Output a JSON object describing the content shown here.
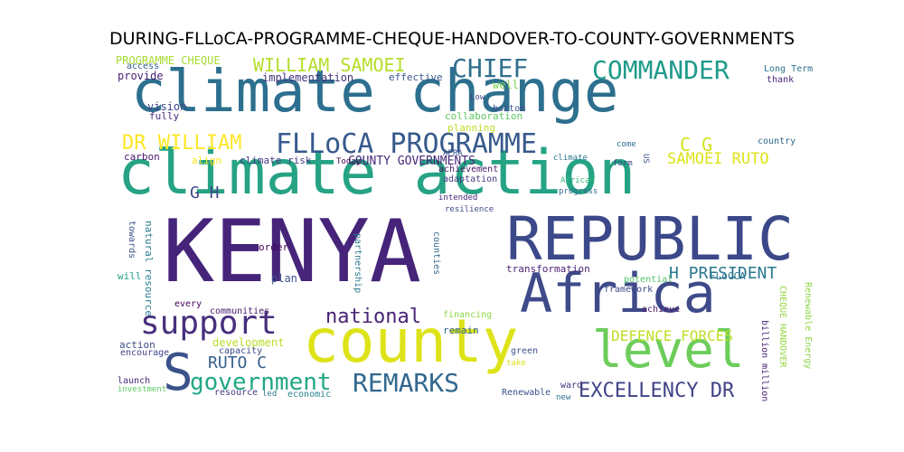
{
  "title": "DURING-FLLoCA-PROGRAMME-CHEQUE-HANDOVER-TO-COUNTY-GOVERNMENTS",
  "words": [
    {
      "text": "KENYA",
      "color": "#46247a"
    },
    {
      "text": "climate change",
      "color": "#2d6f8e"
    },
    {
      "text": "climate action",
      "color": "#25a384"
    },
    {
      "text": "REPUBLIC",
      "color": "#3b4889"
    },
    {
      "text": "Africa",
      "color": "#3e4a89"
    },
    {
      "text": "county",
      "color": "#dde318"
    },
    {
      "text": "level",
      "color": "#6ccd5a"
    },
    {
      "text": "FLLoCA PROGRAMME",
      "color": "#375a8c"
    },
    {
      "text": "COMMANDER",
      "color": "#1f9a8a"
    },
    {
      "text": "CHIEF",
      "color": "#30708e"
    },
    {
      "text": "support",
      "color": "#472f7d"
    },
    {
      "text": "government",
      "color": "#22a785"
    },
    {
      "text": "REMARKS",
      "color": "#31688e"
    },
    {
      "text": "EXCELLENCY DR",
      "color": "#414487"
    },
    {
      "text": "national",
      "color": "#482475"
    },
    {
      "text": "DR WILLIAM",
      "color": "#fde725"
    },
    {
      "text": "WILLIAM SAMOEI",
      "color": "#b5de2b"
    },
    {
      "text": "S",
      "color": "#3a528b"
    },
    {
      "text": "G H",
      "color": "#404688"
    },
    {
      "text": "C G",
      "color": "#d2e21b"
    },
    {
      "text": "SAMOEI RUTO",
      "color": "#dde318"
    },
    {
      "text": "H PRESIDENT",
      "color": "#2a788e"
    },
    {
      "text": "RUTO C",
      "color": "#35608d"
    },
    {
      "text": "DEFENCE FORCES",
      "color": "#c0df25"
    },
    {
      "text": "PROGRAMME CHEQUE",
      "color": "#a8db34"
    },
    {
      "text": "CHEQUE HANDOVER",
      "color": "#95d840"
    },
    {
      "text": "COUNTY GOVERNMENTS",
      "color": "#472a7a"
    },
    {
      "text": "climate risk",
      "color": "#443a83"
    },
    {
      "text": "implementation",
      "color": "#46337e"
    },
    {
      "text": "effective",
      "color": "#39568c"
    },
    {
      "text": "collaboration",
      "color": "#5ec962"
    },
    {
      "text": "planning",
      "color": "#bddf26"
    },
    {
      "text": "bottom",
      "color": "#3b528b"
    },
    {
      "text": "Low",
      "color": "#3e4c8a"
    },
    {
      "text": "well",
      "color": "#7ad151"
    },
    {
      "text": "Long Term",
      "color": "#2c728e"
    },
    {
      "text": "thank",
      "color": "#482878"
    },
    {
      "text": "country",
      "color": "#31688e"
    },
    {
      "text": "come",
      "color": "#2d708e"
    },
    {
      "text": "form",
      "color": "#3f4788"
    },
    {
      "text": "US",
      "color": "#39558c"
    },
    {
      "text": "provide",
      "color": "#482173"
    },
    {
      "text": "vision",
      "color": "#3f4889"
    },
    {
      "text": "fully",
      "color": "#472d7b"
    },
    {
      "text": "access",
      "color": "#355f8d"
    },
    {
      "text": "carbon",
      "color": "#48186a"
    },
    {
      "text": "align",
      "color": "#fde725"
    },
    {
      "text": "Today",
      "color": "#440154"
    },
    {
      "text": "climate",
      "color": "#2a788e"
    },
    {
      "text": "achievement",
      "color": "#48186a"
    },
    {
      "text": "adaptation",
      "color": "#453781"
    },
    {
      "text": "intended",
      "color": "#482576"
    },
    {
      "text": "APRA",
      "color": "#39568c"
    },
    {
      "text": "African",
      "color": "#35b779"
    },
    {
      "text": "progress",
      "color": "#31688e"
    },
    {
      "text": "resilience",
      "color": "#3f4889"
    },
    {
      "text": "towards",
      "color": "#3b528b"
    },
    {
      "text": "natural resource",
      "color": "#287d8e"
    },
    {
      "text": "partnership",
      "color": "#2a788e"
    },
    {
      "text": "counties",
      "color": "#31688e"
    },
    {
      "text": "transformation",
      "color": "#481f70"
    },
    {
      "text": "order",
      "color": "#440154"
    },
    {
      "text": "plan",
      "color": "#3b528b"
    },
    {
      "text": "will",
      "color": "#1fa188"
    },
    {
      "text": "FLoCCA",
      "color": "#2c728e"
    },
    {
      "text": "potential",
      "color": "#50c46a"
    },
    {
      "text": "framework",
      "color": "#3e4989"
    },
    {
      "text": "every",
      "color": "#440154"
    },
    {
      "text": "communities",
      "color": "#481b6d"
    },
    {
      "text": "development",
      "color": "#b8de29"
    },
    {
      "text": "capacity",
      "color": "#3e4a89"
    },
    {
      "text": "financing",
      "color": "#8fd744"
    },
    {
      "text": "remain",
      "color": "#31688e"
    },
    {
      "text": "achieve",
      "color": "#48186a"
    },
    {
      "text": "action",
      "color": "#3e4989"
    },
    {
      "text": "encourage",
      "color": "#414487"
    },
    {
      "text": "green",
      "color": "#3b528b"
    },
    {
      "text": "take",
      "color": "#dde318"
    },
    {
      "text": "launch",
      "color": "#482677"
    },
    {
      "text": "investment",
      "color": "#5ec962"
    },
    {
      "text": "resource",
      "color": "#443983"
    },
    {
      "text": "led",
      "color": "#2a788e"
    },
    {
      "text": "economic",
      "color": "#26828e"
    },
    {
      "text": "Renewable",
      "color": "#3a538b"
    },
    {
      "text": "ward",
      "color": "#46327e"
    },
    {
      "text": "new",
      "color": "#2c728e"
    },
    {
      "text": "billion million",
      "color": "#482173"
    },
    {
      "text": "Renewable Energy",
      "color": "#8bd646"
    }
  ]
}
